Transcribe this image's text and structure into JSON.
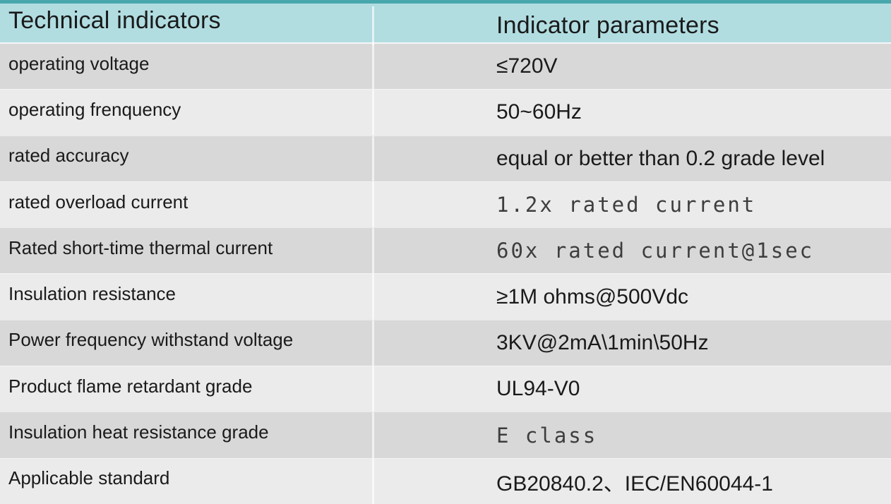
{
  "table": {
    "header": {
      "col1": "Technical indicators",
      "col2": "Indicator parameters"
    },
    "rows": [
      {
        "indicator": "operating voltage",
        "parameter": "≤720V"
      },
      {
        "indicator": "operating frenquency",
        "parameter": "50~60Hz"
      },
      {
        "indicator": "rated accuracy",
        "parameter": "equal or better than 0.2 grade level"
      },
      {
        "indicator": "rated overload current",
        "parameter": "1.2x rated current"
      },
      {
        "indicator": "Rated short-time thermal current",
        "parameter": "60x rated current@1sec"
      },
      {
        "indicator": "Insulation resistance",
        "parameter": "≥1M ohms@500Vdc"
      },
      {
        "indicator": "Power frequency withstand voltage",
        "parameter": "3KV@2mA\\1min\\50Hz"
      },
      {
        "indicator": "Product flame retardant grade",
        "parameter": "UL94-V0"
      },
      {
        "indicator": "Insulation heat resistance grade",
        "parameter": "E class"
      },
      {
        "indicator": "Applicable standard",
        "parameter": "GB20840.2、IEC/EN60044-1"
      }
    ],
    "colors": {
      "top_border": "#48a7ac",
      "header_bg": "#b1dde1",
      "row_dark": "#d8d8d8",
      "row_light": "#ebebeb",
      "text": "#1a1a1a"
    }
  }
}
